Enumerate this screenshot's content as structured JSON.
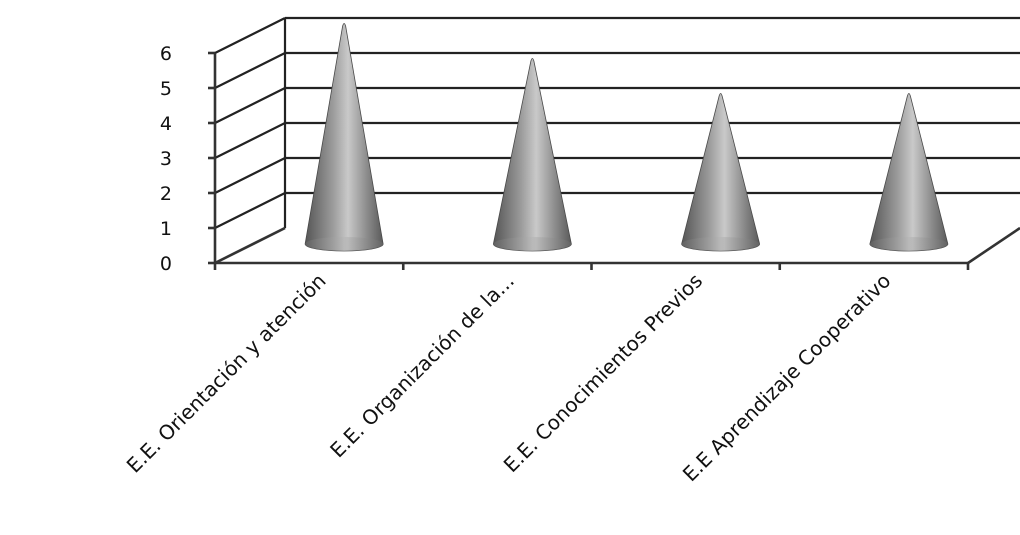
{
  "chart_data": {
    "type": "bar",
    "style": "3d-cone",
    "categories": [
      "E.E. Orientación y atención",
      "E.E. Organización de la...",
      "E.E. Conocimientos Previos",
      "E.E Aprendizaje Cooperativo"
    ],
    "values": [
      6,
      5,
      4,
      4
    ],
    "ylim": [
      0,
      6
    ],
    "y_ticks": [
      "0",
      "1",
      "2",
      "3",
      "4",
      "5",
      "6"
    ],
    "grid": true,
    "legend": "none",
    "bar_color": "#8a8a8a"
  }
}
